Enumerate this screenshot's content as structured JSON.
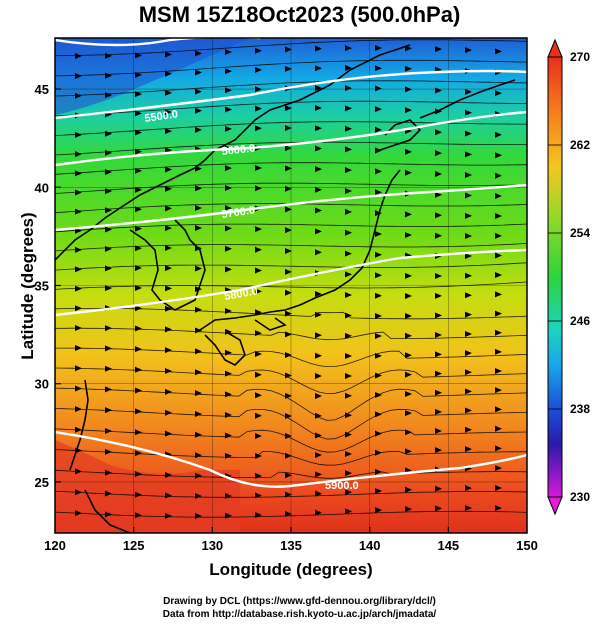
{
  "title": "MSM 15Z18Oct2023 (500.0hPa)",
  "xlabel": "Longitude (degrees)",
  "ylabel": "Latitude  (degrees)",
  "credits": {
    "line1": "Drawing by DCL (https://www.gfd-dennou.org/library/dcl/)",
    "line2": "Data from http://database.rish.kyoto-u.ac.jp/arch/jmadata/"
  },
  "map": {
    "x_range": [
      120,
      150
    ],
    "y_range": [
      22.4,
      47.6
    ],
    "x_ticks": [
      120,
      125,
      130,
      135,
      140,
      145,
      150
    ],
    "y_ticks": [
      25,
      30,
      35,
      40,
      45
    ],
    "x_tick_labels": [
      "120",
      "125",
      "130",
      "135",
      "140",
      "145",
      "150"
    ],
    "y_tick_labels": [
      "25",
      "30",
      "35",
      "40",
      "45"
    ],
    "contour_labels": [
      "5500.0",
      "5600.0",
      "5700.0",
      "5800.0",
      "5900.0"
    ]
  },
  "colorbar": {
    "min": 230,
    "max": 270,
    "tick_labels": [
      "270",
      "262",
      "254",
      "246",
      "238",
      "230"
    ],
    "tick_values": [
      270,
      262,
      254,
      246,
      238,
      230
    ]
  }
}
